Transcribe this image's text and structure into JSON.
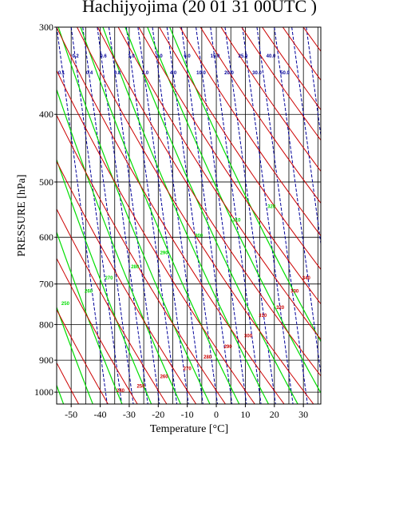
{
  "chart_data": {
    "type": "line",
    "title": "Hachijyojima (20 01 31 00UTC )",
    "xlabel": "Temperature  [°C]",
    "ylabel": "PRESSURE [hPa]",
    "xlim": [
      -55,
      36
    ],
    "ylim": [
      1040,
      300
    ],
    "yscale": "log",
    "grid": true,
    "x_ticks": [
      -50,
      -40,
      -30,
      -20,
      -10,
      0,
      10,
      20,
      30
    ],
    "x_tick_labels": [
      "-50",
      "-40",
      "-30",
      "-20",
      "-10",
      "0",
      "10",
      "20",
      "30"
    ],
    "y_ticks": [
      300,
      400,
      500,
      600,
      700,
      800,
      900,
      1000
    ],
    "y_tick_labels": [
      "300",
      "400",
      "500",
      "600",
      "700",
      "800",
      "900",
      "1000"
    ],
    "skew": 45,
    "series": [
      {
        "kind": "dry-adiabat",
        "color": "#cc0000",
        "theta_k": [
          240,
          250,
          260,
          270,
          280,
          290,
          300,
          310,
          320,
          330,
          340,
          350,
          360,
          370,
          380,
          390,
          400,
          410,
          420,
          430,
          440,
          450,
          460,
          470
        ],
        "labels": [
          {
            "text": "240",
            "p": 1000,
            "t": -33
          },
          {
            "text": "250",
            "p": 985,
            "t": -26
          },
          {
            "text": "260",
            "p": 955,
            "t": -18
          },
          {
            "text": "270",
            "p": 930,
            "t": -10
          },
          {
            "text": "280",
            "p": 895,
            "t": -3
          },
          {
            "text": "290",
            "p": 865,
            "t": 4
          },
          {
            "text": "300",
            "p": 835,
            "t": 11
          },
          {
            "text": "310",
            "p": 780,
            "t": 16
          },
          {
            "text": "320",
            "p": 760,
            "t": 22
          },
          {
            "text": "330",
            "p": 720,
            "t": 27
          },
          {
            "text": "340",
            "p": 690,
            "t": 31
          }
        ]
      },
      {
        "kind": "moist-adiabat",
        "color": "#00dd00",
        "theta_k": [
          230,
          240,
          250,
          260,
          270,
          280,
          290,
          300,
          310,
          320,
          330
        ],
        "labels": [
          {
            "text": "250",
            "p": 750,
            "t": -52
          },
          {
            "text": "260",
            "p": 720,
            "t": -44
          },
          {
            "text": "270",
            "p": 690,
            "t": -37
          },
          {
            "text": "280",
            "p": 665,
            "t": -28
          },
          {
            "text": "290",
            "p": 635,
            "t": -18
          },
          {
            "text": "300",
            "p": 600,
            "t": -6
          },
          {
            "text": "310",
            "p": 570,
            "t": 7
          },
          {
            "text": "320",
            "p": 545,
            "t": 19
          }
        ]
      },
      {
        "kind": "mixing-ratio",
        "color": "#000099",
        "labels": [
          {
            "text": "0.1",
            "col": 0,
            "row": 1
          },
          {
            "text": "0.2",
            "col": 1,
            "row": 0
          },
          {
            "text": "0.4",
            "col": 2,
            "row": 1
          },
          {
            "text": "0.6",
            "col": 3,
            "row": 0
          },
          {
            "text": "0.8",
            "col": 4,
            "row": 1
          },
          {
            "text": "1.0",
            "col": 5,
            "row": 0
          },
          {
            "text": "2.0",
            "col": 6,
            "row": 1
          },
          {
            "text": "3.0",
            "col": 7,
            "row": 0
          },
          {
            "text": "4.0",
            "col": 8,
            "row": 1
          },
          {
            "text": "6.0",
            "col": 9,
            "row": 0
          },
          {
            "text": "10.0",
            "col": 10,
            "row": 1
          },
          {
            "text": "15.0",
            "col": 11,
            "row": 0
          },
          {
            "text": "20.0",
            "col": 12,
            "row": 1
          },
          {
            "text": "25.0",
            "col": 13,
            "row": 0
          },
          {
            "text": "30.0",
            "col": 14,
            "row": 1
          },
          {
            "text": "40.0",
            "col": 15,
            "row": 0
          },
          {
            "text": "50.0",
            "col": 16,
            "row": 1
          }
        ]
      }
    ]
  }
}
